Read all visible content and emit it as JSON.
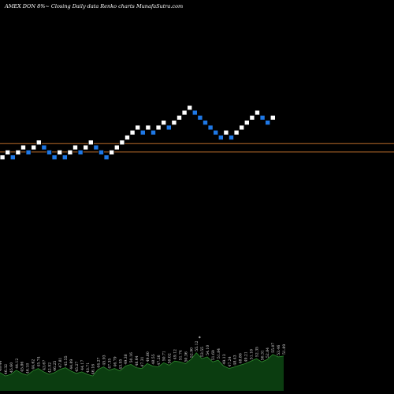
{
  "header": {
    "title": "AMEX  DON  8%~  Closing Daily data  Renko  charts MunafaSutra.com"
  },
  "colors": {
    "background": "#000000",
    "brick_up": "#ffffff",
    "brick_down": "#1e78e6",
    "reference_line": "#b86b2a",
    "volume_fill": "#0b3d10",
    "volume_edge": "#2f8a2f"
  },
  "chart_data": {
    "type": "renko",
    "title": "AMEX  DON  8%~  Closing Daily data  Renko  charts MunafaSutra.com",
    "bricks": [
      {
        "dir": "up",
        "level": 0
      },
      {
        "dir": "up",
        "level": 1
      },
      {
        "dir": "down",
        "level": 0
      },
      {
        "dir": "up",
        "level": 1
      },
      {
        "dir": "up",
        "level": 2
      },
      {
        "dir": "down",
        "level": 1
      },
      {
        "dir": "up",
        "level": 2
      },
      {
        "dir": "up",
        "level": 3
      },
      {
        "dir": "down",
        "level": 2
      },
      {
        "dir": "down",
        "level": 1
      },
      {
        "dir": "down",
        "level": 0
      },
      {
        "dir": "up",
        "level": 1
      },
      {
        "dir": "down",
        "level": 0
      },
      {
        "dir": "up",
        "level": 1
      },
      {
        "dir": "up",
        "level": 2
      },
      {
        "dir": "down",
        "level": 1
      },
      {
        "dir": "up",
        "level": 2
      },
      {
        "dir": "up",
        "level": 3
      },
      {
        "dir": "down",
        "level": 2
      },
      {
        "dir": "down",
        "level": 1
      },
      {
        "dir": "down",
        "level": 0
      },
      {
        "dir": "up",
        "level": 1
      },
      {
        "dir": "up",
        "level": 2
      },
      {
        "dir": "up",
        "level": 3
      },
      {
        "dir": "up",
        "level": 4
      },
      {
        "dir": "up",
        "level": 5
      },
      {
        "dir": "up",
        "level": 6
      },
      {
        "dir": "down",
        "level": 5
      },
      {
        "dir": "up",
        "level": 6
      },
      {
        "dir": "down",
        "level": 5
      },
      {
        "dir": "up",
        "level": 6
      },
      {
        "dir": "up",
        "level": 7
      },
      {
        "dir": "down",
        "level": 6
      },
      {
        "dir": "up",
        "level": 7
      },
      {
        "dir": "up",
        "level": 8
      },
      {
        "dir": "up",
        "level": 9
      },
      {
        "dir": "up",
        "level": 10
      },
      {
        "dir": "down",
        "level": 9
      },
      {
        "dir": "down",
        "level": 8
      },
      {
        "dir": "down",
        "level": 7
      },
      {
        "dir": "down",
        "level": 6
      },
      {
        "dir": "down",
        "level": 5
      },
      {
        "dir": "down",
        "level": 4
      },
      {
        "dir": "up",
        "level": 5
      },
      {
        "dir": "down",
        "level": 4
      },
      {
        "dir": "up",
        "level": 5
      },
      {
        "dir": "up",
        "level": 6
      },
      {
        "dir": "up",
        "level": 7
      },
      {
        "dir": "up",
        "level": 8
      },
      {
        "dir": "up",
        "level": 9
      },
      {
        "dir": "down",
        "level": 8
      },
      {
        "dir": "down",
        "level": 7
      },
      {
        "dir": "up",
        "level": 8
      }
    ],
    "reference_lines": [
      3.3,
      1.6
    ],
    "level_range": [
      0,
      10
    ],
    "volume_labels": [
      "49.44",
      "46.32",
      "45.60",
      "44.12",
      "45.86",
      "46.18",
      "44.62",
      "45.74",
      "43.67",
      "42.92",
      "46.25",
      "47.81",
      "45.55",
      "44.89",
      "45.27",
      "44.17",
      "43.71",
      "46.16",
      "44.27",
      "45.93",
      "47.35",
      "46.79",
      "43.55",
      "49.38",
      "50.16",
      "48.64",
      "47.31",
      "49.80",
      "48.55",
      "47.26",
      "50.71",
      "50.02",
      "49.12",
      "51.74",
      "50.36",
      "52.90",
      "55.12",
      "53.55",
      "54.10",
      "51.69",
      "51.84",
      "49.13",
      "47.24",
      "48.43",
      "48.86",
      "49.21",
      "51.18",
      "52.35",
      "50.31",
      "52.84",
      "55.07",
      "53.46",
      "51.89"
    ],
    "volume_values": [
      22,
      18,
      20,
      25,
      21,
      19,
      24,
      27,
      23,
      20,
      22,
      26,
      28,
      24,
      21,
      23,
      20,
      18,
      26,
      29,
      25,
      27,
      24,
      30,
      32,
      28,
      27,
      33,
      30,
      29,
      34,
      31,
      36,
      35,
      33,
      38,
      46,
      39,
      41,
      35,
      37,
      30,
      27,
      29,
      31,
      33,
      36,
      39,
      35,
      38,
      44,
      41,
      42
    ],
    "marker": "*"
  }
}
